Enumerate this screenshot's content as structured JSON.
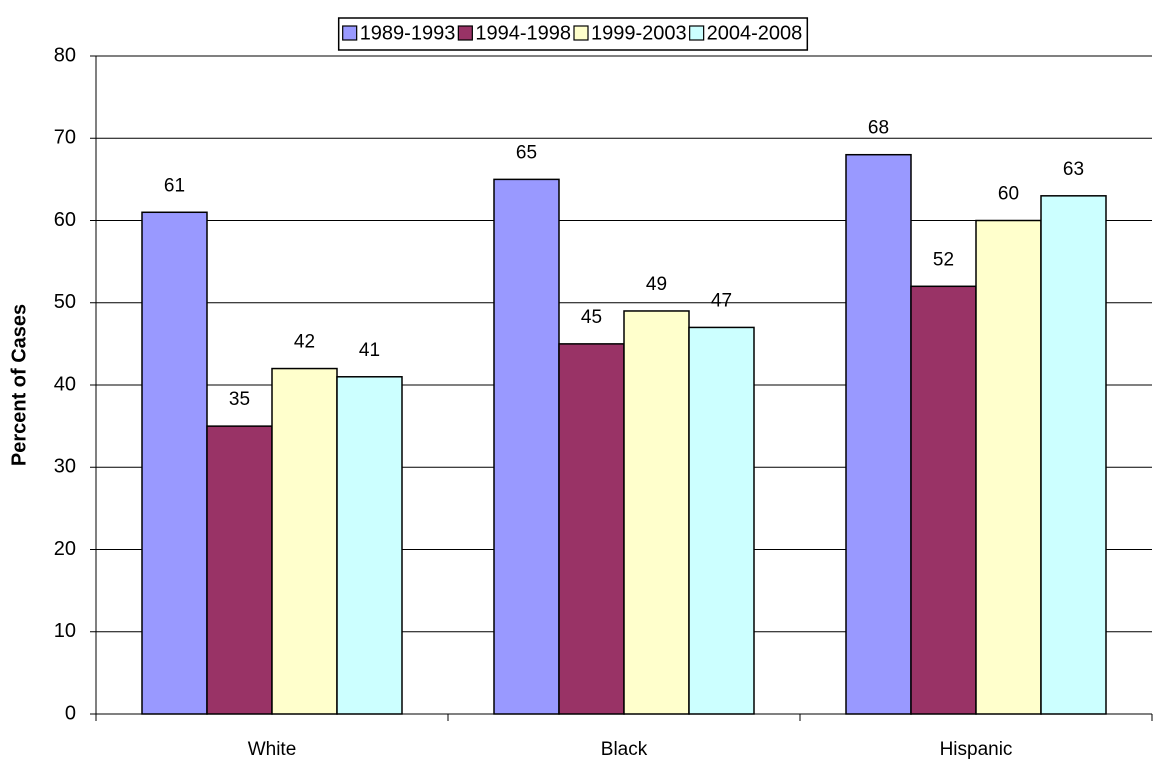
{
  "chart_data": {
    "type": "bar",
    "y_label": "Percent of Cases",
    "categories": [
      "White",
      "Black",
      "Hispanic"
    ],
    "series": [
      {
        "name": "1989-1993",
        "color": "#9999ff",
        "values": [
          61,
          65,
          68
        ]
      },
      {
        "name": "1994-1998",
        "color": "#993366",
        "values": [
          35,
          45,
          52
        ]
      },
      {
        "name": "1999-2003",
        "color": "#ffffcc",
        "values": [
          42,
          49,
          60
        ]
      },
      {
        "name": "2004-2008",
        "color": "#ccffff",
        "values": [
          41,
          47,
          63
        ]
      }
    ],
    "ylim": [
      0,
      80
    ],
    "yticks": [
      0,
      10,
      20,
      30,
      40,
      50,
      60,
      70,
      80
    ],
    "grid": true,
    "data_labels": true,
    "legend": "top"
  }
}
